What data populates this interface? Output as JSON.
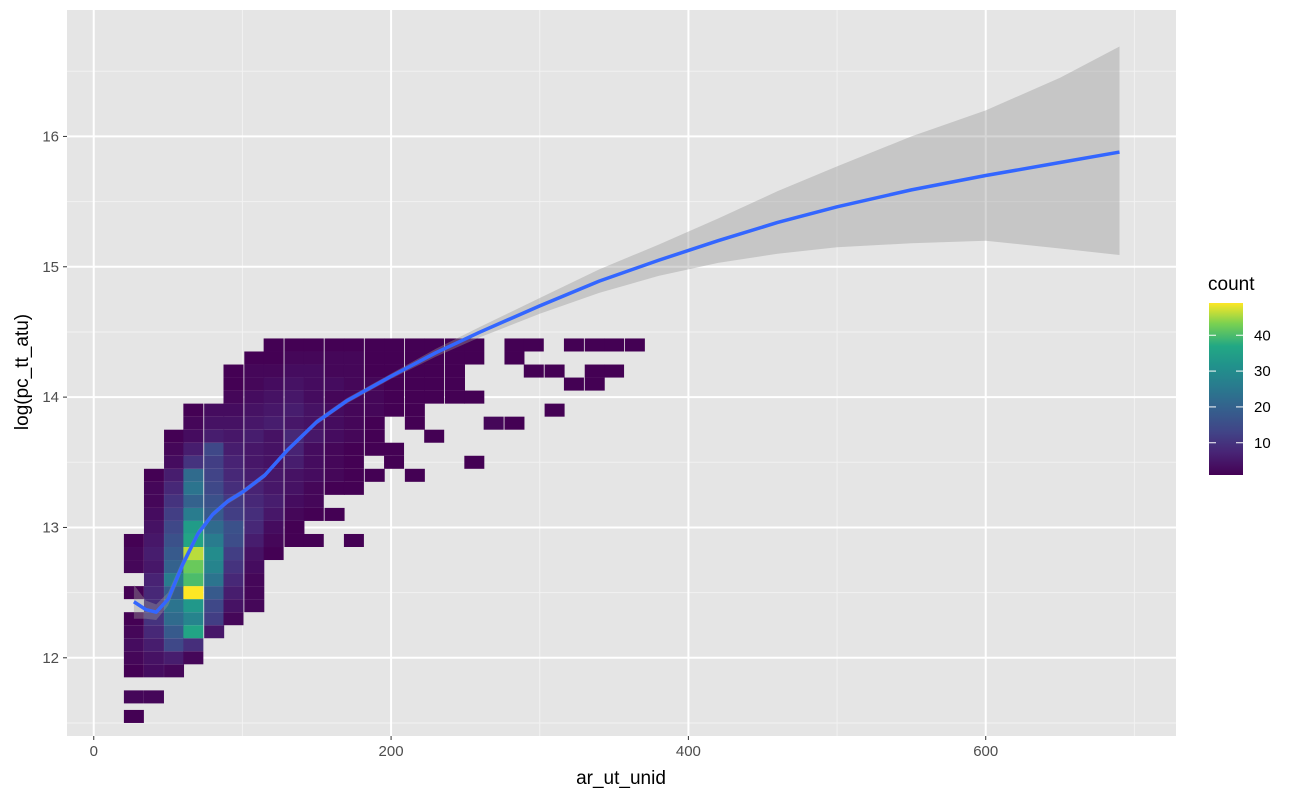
{
  "chart_data": {
    "type": "heatmap",
    "subtype": "2d-bin-count-with-smooth",
    "title": "",
    "xlabel": "ar_ut_unid",
    "ylabel": "log(pc_tt_atu)",
    "xlim": [
      -18,
      728
    ],
    "ylim": [
      11.4,
      16.97
    ],
    "x_ticks": [
      0,
      200,
      400,
      600
    ],
    "x_tick_labels": [
      "0",
      "200",
      "400",
      "600"
    ],
    "y_ticks": [
      12,
      13,
      14,
      15,
      16
    ],
    "y_tick_labels": [
      "12",
      "13",
      "14",
      "15",
      "16"
    ],
    "grid": true,
    "bin_width": {
      "x": 13.45,
      "y": 0.1
    },
    "fill_scale": {
      "name": "count",
      "palette": "viridis",
      "range": [
        1,
        49
      ],
      "breaks": [
        10,
        20,
        30,
        40
      ],
      "break_labels": [
        "10",
        "20",
        "30",
        "40"
      ]
    },
    "legend_position": "right",
    "bins_note": "cells: [x_center, y_center, count]",
    "bins": [
      [
        27,
        11.55,
        1
      ],
      [
        27,
        11.7,
        2
      ],
      [
        40.5,
        11.7,
        2
      ],
      [
        27,
        11.9,
        1
      ],
      [
        40.5,
        11.9,
        3
      ],
      [
        54,
        11.9,
        2
      ],
      [
        27,
        12.0,
        2
      ],
      [
        40.5,
        12.0,
        4
      ],
      [
        54,
        12.0,
        6
      ],
      [
        67,
        12.0,
        2
      ],
      [
        27,
        12.1,
        3
      ],
      [
        40.5,
        12.1,
        6
      ],
      [
        54,
        12.1,
        14
      ],
      [
        67,
        12.1,
        9
      ],
      [
        27,
        12.2,
        2
      ],
      [
        40.5,
        12.2,
        8
      ],
      [
        54,
        12.2,
        18
      ],
      [
        67,
        12.2,
        36
      ],
      [
        81,
        12.2,
        5
      ],
      [
        27,
        12.3,
        1
      ],
      [
        40.5,
        12.3,
        10
      ],
      [
        54,
        12.3,
        22
      ],
      [
        67,
        12.3,
        28
      ],
      [
        81,
        12.3,
        12
      ],
      [
        94,
        12.3,
        2
      ],
      [
        40.5,
        12.4,
        9
      ],
      [
        54,
        12.4,
        24
      ],
      [
        67,
        12.4,
        33
      ],
      [
        81,
        12.4,
        14
      ],
      [
        94,
        12.4,
        4
      ],
      [
        108,
        12.4,
        2
      ],
      [
        27,
        12.5,
        1
      ],
      [
        40.5,
        12.5,
        8
      ],
      [
        54,
        12.5,
        19
      ],
      [
        67,
        12.5,
        49
      ],
      [
        81,
        12.5,
        18
      ],
      [
        94,
        12.5,
        6
      ],
      [
        108,
        12.5,
        2
      ],
      [
        40.5,
        12.6,
        7
      ],
      [
        54,
        12.6,
        26
      ],
      [
        67,
        12.6,
        40
      ],
      [
        81,
        12.6,
        24
      ],
      [
        94,
        12.6,
        8
      ],
      [
        108,
        12.6,
        2
      ],
      [
        27,
        12.7,
        2
      ],
      [
        40.5,
        12.7,
        5
      ],
      [
        54,
        12.7,
        20
      ],
      [
        67,
        12.7,
        42
      ],
      [
        81,
        12.7,
        28
      ],
      [
        94,
        12.7,
        10
      ],
      [
        108,
        12.7,
        3
      ],
      [
        27,
        12.8,
        2
      ],
      [
        40.5,
        12.8,
        6
      ],
      [
        54,
        12.8,
        18
      ],
      [
        67,
        12.8,
        46
      ],
      [
        81,
        12.8,
        30
      ],
      [
        94,
        12.8,
        12
      ],
      [
        108,
        12.8,
        4
      ],
      [
        121,
        12.8,
        1
      ],
      [
        27,
        12.9,
        1
      ],
      [
        40.5,
        12.9,
        5
      ],
      [
        54,
        12.9,
        16
      ],
      [
        67,
        12.9,
        36
      ],
      [
        81,
        12.9,
        26
      ],
      [
        94,
        12.9,
        15
      ],
      [
        108,
        12.9,
        6
      ],
      [
        121,
        12.9,
        2
      ],
      [
        135,
        12.9,
        1
      ],
      [
        148,
        12.9,
        1
      ],
      [
        175,
        12.9,
        1
      ],
      [
        40.5,
        13.0,
        4
      ],
      [
        54,
        13.0,
        14
      ],
      [
        67,
        13.0,
        34
      ],
      [
        81,
        13.0,
        22
      ],
      [
        94,
        13.0,
        16
      ],
      [
        108,
        13.0,
        8
      ],
      [
        121,
        13.0,
        3
      ],
      [
        135,
        13.0,
        1
      ],
      [
        40.5,
        13.1,
        3
      ],
      [
        54,
        13.1,
        12
      ],
      [
        67,
        13.1,
        26
      ],
      [
        81,
        13.1,
        18
      ],
      [
        94,
        13.1,
        12
      ],
      [
        108,
        13.1,
        9
      ],
      [
        121,
        13.1,
        5
      ],
      [
        135,
        13.1,
        2
      ],
      [
        148,
        13.1,
        1
      ],
      [
        162,
        13.1,
        1
      ],
      [
        40.5,
        13.2,
        2
      ],
      [
        54,
        13.2,
        10
      ],
      [
        67,
        13.2,
        20
      ],
      [
        81,
        13.2,
        16
      ],
      [
        94,
        13.2,
        11
      ],
      [
        108,
        13.2,
        8
      ],
      [
        121,
        13.2,
        6
      ],
      [
        135,
        13.2,
        3
      ],
      [
        148,
        13.2,
        2
      ],
      [
        40.5,
        13.3,
        2
      ],
      [
        54,
        13.3,
        8
      ],
      [
        67,
        13.3,
        24
      ],
      [
        81,
        13.3,
        14
      ],
      [
        94,
        13.3,
        9
      ],
      [
        108,
        13.3,
        7
      ],
      [
        121,
        13.3,
        5
      ],
      [
        135,
        13.3,
        4
      ],
      [
        148,
        13.3,
        2
      ],
      [
        162,
        13.3,
        1
      ],
      [
        175,
        13.3,
        1
      ],
      [
        40.5,
        13.4,
        1
      ],
      [
        54,
        13.4,
        6
      ],
      [
        67,
        13.4,
        22
      ],
      [
        81,
        13.4,
        13
      ],
      [
        94,
        13.4,
        8
      ],
      [
        108,
        13.4,
        6
      ],
      [
        121,
        13.4,
        5
      ],
      [
        135,
        13.4,
        4
      ],
      [
        148,
        13.4,
        3
      ],
      [
        162,
        13.4,
        2
      ],
      [
        175,
        13.4,
        1
      ],
      [
        189,
        13.4,
        1
      ],
      [
        216,
        13.4,
        1
      ],
      [
        54,
        13.5,
        3
      ],
      [
        67,
        13.5,
        10
      ],
      [
        81,
        13.5,
        12
      ],
      [
        94,
        13.5,
        7
      ],
      [
        108,
        13.5,
        5
      ],
      [
        121,
        13.5,
        4
      ],
      [
        135,
        13.5,
        6
      ],
      [
        148,
        13.5,
        3
      ],
      [
        162,
        13.5,
        2
      ],
      [
        175,
        13.5,
        1
      ],
      [
        202,
        13.5,
        1
      ],
      [
        256,
        13.5,
        1
      ],
      [
        54,
        13.6,
        2
      ],
      [
        67,
        13.6,
        6
      ],
      [
        81,
        13.6,
        14
      ],
      [
        94,
        13.6,
        6
      ],
      [
        108,
        13.6,
        5
      ],
      [
        121,
        13.6,
        4
      ],
      [
        135,
        13.6,
        7
      ],
      [
        148,
        13.6,
        3
      ],
      [
        162,
        13.6,
        2
      ],
      [
        175,
        13.6,
        1
      ],
      [
        189,
        13.6,
        1
      ],
      [
        202,
        13.6,
        1
      ],
      [
        54,
        13.7,
        1
      ],
      [
        67,
        13.7,
        3
      ],
      [
        81,
        13.7,
        6
      ],
      [
        94,
        13.7,
        5
      ],
      [
        108,
        13.7,
        6
      ],
      [
        121,
        13.7,
        4
      ],
      [
        135,
        13.7,
        8
      ],
      [
        148,
        13.7,
        5
      ],
      [
        162,
        13.7,
        3
      ],
      [
        175,
        13.7,
        2
      ],
      [
        189,
        13.7,
        1
      ],
      [
        229,
        13.7,
        1
      ],
      [
        67,
        13.8,
        2
      ],
      [
        81,
        13.8,
        4
      ],
      [
        94,
        13.8,
        4
      ],
      [
        108,
        13.8,
        5
      ],
      [
        121,
        13.8,
        6
      ],
      [
        135,
        13.8,
        5
      ],
      [
        148,
        13.8,
        4
      ],
      [
        162,
        13.8,
        3
      ],
      [
        175,
        13.8,
        2
      ],
      [
        189,
        13.8,
        1
      ],
      [
        216,
        13.8,
        1
      ],
      [
        269,
        13.8,
        2
      ],
      [
        283,
        13.8,
        1
      ],
      [
        67,
        13.9,
        1
      ],
      [
        81,
        13.9,
        3
      ],
      [
        94,
        13.9,
        3
      ],
      [
        108,
        13.9,
        4
      ],
      [
        121,
        13.9,
        5
      ],
      [
        135,
        13.9,
        6
      ],
      [
        148,
        13.9,
        4
      ],
      [
        162,
        13.9,
        3
      ],
      [
        175,
        13.9,
        2
      ],
      [
        189,
        13.9,
        2
      ],
      [
        202,
        13.9,
        1
      ],
      [
        216,
        13.9,
        1
      ],
      [
        310,
        13.9,
        1
      ],
      [
        94,
        14.0,
        2
      ],
      [
        108,
        14.0,
        3
      ],
      [
        121,
        14.0,
        4
      ],
      [
        135,
        14.0,
        5
      ],
      [
        148,
        14.0,
        3
      ],
      [
        162,
        14.0,
        2
      ],
      [
        175,
        14.0,
        2
      ],
      [
        189,
        14.0,
        2
      ],
      [
        202,
        14.0,
        1
      ],
      [
        216,
        14.0,
        1
      ],
      [
        229,
        14.0,
        1
      ],
      [
        243,
        14.0,
        1
      ],
      [
        256,
        14.0,
        1
      ],
      [
        94,
        14.1,
        1
      ],
      [
        108,
        14.1,
        2
      ],
      [
        121,
        14.1,
        3
      ],
      [
        135,
        14.1,
        4
      ],
      [
        148,
        14.1,
        3
      ],
      [
        162,
        14.1,
        3
      ],
      [
        175,
        14.1,
        2
      ],
      [
        189,
        14.1,
        2
      ],
      [
        202,
        14.1,
        1
      ],
      [
        216,
        14.1,
        1
      ],
      [
        229,
        14.1,
        1
      ],
      [
        243,
        14.1,
        1
      ],
      [
        323,
        14.1,
        1
      ],
      [
        337,
        14.1,
        1
      ],
      [
        94,
        14.2,
        1
      ],
      [
        108,
        14.2,
        2
      ],
      [
        121,
        14.2,
        2
      ],
      [
        135,
        14.2,
        3
      ],
      [
        148,
        14.2,
        3
      ],
      [
        162,
        14.2,
        2
      ],
      [
        175,
        14.2,
        2
      ],
      [
        189,
        14.2,
        1
      ],
      [
        202,
        14.2,
        1
      ],
      [
        216,
        14.2,
        1
      ],
      [
        229,
        14.2,
        1
      ],
      [
        243,
        14.2,
        1
      ],
      [
        296,
        14.2,
        1
      ],
      [
        310,
        14.2,
        1
      ],
      [
        337,
        14.2,
        1
      ],
      [
        350,
        14.2,
        1
      ],
      [
        108,
        14.3,
        1
      ],
      [
        121,
        14.3,
        1
      ],
      [
        135,
        14.3,
        2
      ],
      [
        148,
        14.3,
        2
      ],
      [
        162,
        14.3,
        2
      ],
      [
        175,
        14.3,
        2
      ],
      [
        189,
        14.3,
        1
      ],
      [
        202,
        14.3,
        1
      ],
      [
        216,
        14.3,
        1
      ],
      [
        229,
        14.3,
        1
      ],
      [
        243,
        14.3,
        1
      ],
      [
        256,
        14.3,
        1
      ],
      [
        283,
        14.3,
        1
      ],
      [
        121,
        14.4,
        1
      ],
      [
        135,
        14.4,
        1
      ],
      [
        148,
        14.4,
        1
      ],
      [
        162,
        14.4,
        1
      ],
      [
        175,
        14.4,
        1
      ],
      [
        189,
        14.4,
        1
      ],
      [
        202,
        14.4,
        1
      ],
      [
        216,
        14.4,
        1
      ],
      [
        229,
        14.4,
        1
      ],
      [
        243,
        14.4,
        1
      ],
      [
        256,
        14.4,
        1
      ],
      [
        283,
        14.4,
        1
      ],
      [
        296,
        14.4,
        1
      ],
      [
        323,
        14.4,
        1
      ],
      [
        337,
        14.4,
        1
      ],
      [
        350,
        14.4,
        1
      ],
      [
        364,
        14.4,
        1
      ]
    ],
    "smooth": {
      "method": "loess",
      "color": "#3366ff",
      "ribbon_color": "#999999",
      "x": [
        27,
        35,
        42,
        50,
        60,
        70,
        80,
        90,
        100,
        115,
        130,
        150,
        170,
        200,
        230,
        260,
        300,
        340,
        380,
        420,
        460,
        500,
        550,
        600,
        650,
        690
      ],
      "y": [
        12.43,
        12.37,
        12.35,
        12.45,
        12.72,
        12.95,
        13.1,
        13.2,
        13.27,
        13.4,
        13.59,
        13.81,
        13.97,
        14.16,
        14.34,
        14.5,
        14.7,
        14.89,
        15.05,
        15.2,
        15.34,
        15.46,
        15.59,
        15.7,
        15.8,
        15.88
      ],
      "lo": [
        12.3,
        12.3,
        12.29,
        12.4,
        12.68,
        12.92,
        13.08,
        13.18,
        13.25,
        13.38,
        13.57,
        13.79,
        13.95,
        14.14,
        14.31,
        14.46,
        14.64,
        14.8,
        14.93,
        15.03,
        15.1,
        15.15,
        15.18,
        15.2,
        15.14,
        15.09
      ],
      "hi": [
        12.56,
        12.44,
        12.41,
        12.5,
        12.76,
        12.98,
        13.12,
        13.22,
        13.29,
        13.42,
        13.61,
        13.83,
        13.99,
        14.18,
        14.37,
        14.54,
        14.76,
        14.98,
        15.17,
        15.37,
        15.58,
        15.77,
        16.0,
        16.2,
        16.45,
        16.69
      ]
    }
  }
}
